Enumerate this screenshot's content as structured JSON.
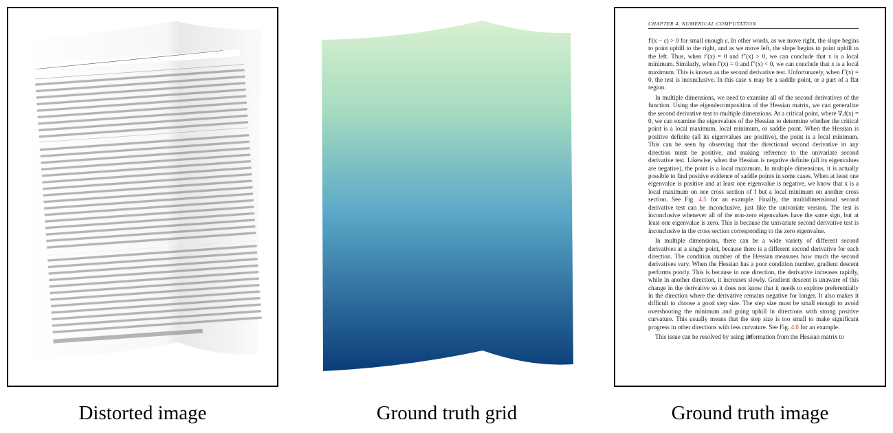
{
  "panels": {
    "distorted": {
      "caption": "Distorted image"
    },
    "grid": {
      "caption": "Ground truth grid"
    },
    "ground_truth": {
      "caption": "Ground truth image"
    }
  },
  "page": {
    "header": "CHAPTER 4.  NUMERICAL COMPUTATION",
    "paragraphs": [
      "f′(x − ε) > 0 for small enough ε. In other words, as we move right, the slope begins to point uphill to the right, and as we move left, the slope begins to point uphill to the left. Thus, when f′(x) = 0 and f″(x) > 0, we can conclude that x is a local minimum. Similarly, when f′(x) = 0 and f″(x) < 0, we can conclude that x is a local maximum. This is known as the second derivative test. Unfortunately, when f″(x) = 0, the test is inconclusive. In this case x may be a saddle point, or a part of a flat region.",
      "In multiple dimensions, we need to examine all of the second derivatives of the function. Using the eigendecomposition of the Hessian matrix, we can generalize the second derivative test to multiple dimensions. At a critical point, where ∇ₓf(x) = 0, we can examine the eigenvalues of the Hessian to determine whether the critical point is a local maximum, local minimum, or saddle point. When the Hessian is positive definite (all its eigenvalues are positive), the point is a local minimum. This can be seen by observing that the directional second derivative in any direction must be positive, and making reference to the univariate second derivative test. Likewise, when the Hessian is negative definite (all its eigenvalues are negative), the point is a local maximum. In multiple dimensions, it is actually possible to find positive evidence of saddle points in some cases. When at least one eigenvalue is positive and at least one eigenvalue is negative, we know that x is a local maximum on one cross section of f but a local minimum on another cross section. See Fig.",
      "In multiple dimensions, there can be a wide variety of different second derivatives at a single point, because there is a different second derivative for each direction. The condition number of the Hessian measures how much the second derivatives vary. When the Hessian has a poor condition number, gradient descent performs poorly. This is because in one direction, the derivative increases rapidly, while in another direction, it increases slowly. Gradient descent is unaware of this change in the derivative so it does not know that it needs to explore preferentially in the direction where the derivative remains negative for longer. It also makes it difficult to choose a good step size. The step size must be small enough to avoid overshooting the minimum and going uphill in directions with strong positive curvature. This usually means that the step size is too small to make significant progress in other directions with less curvature. See Fig.",
      "This issue can be resolved by using information from the Hessian matrix to"
    ],
    "para2_ref": "4.5",
    "para2_tail": " for an example. Finally, the multidimensional second derivative test can be inconclusive, just like the univariate version. The test is inconclusive whenever all of the non-zero eigenvalues have the same sign, but at least one eigenvalue is zero. This is because the univariate second derivative test is inconclusive in the cross section corresponding to the zero eigenvalue.",
    "para3_ref": "4.6",
    "para3_tail": " for an example.",
    "page_number": "86"
  },
  "colors": {
    "grid_top": "#d8f0d0",
    "grid_mid": "#5aa8c8",
    "grid_bottom": "#0a3c78"
  }
}
